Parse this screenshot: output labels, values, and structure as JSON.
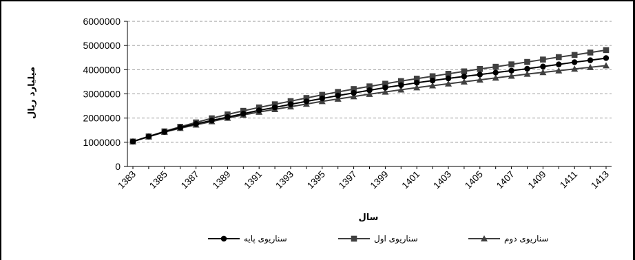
{
  "chart_data": {
    "type": "line",
    "title": "",
    "xlabel": "سال",
    "ylabel": "میلیارد ریال",
    "ylim": [
      0,
      6000000
    ],
    "yticks": [
      0,
      1000000,
      2000000,
      3000000,
      4000000,
      5000000,
      6000000
    ],
    "ytick_labels": [
      "0",
      "1000000",
      "2000000",
      "3000000",
      "4000000",
      "5000000",
      "6000000"
    ],
    "xtick_labels": [
      "1383",
      "1385",
      "1387",
      "1389",
      "1391",
      "1393",
      "1395",
      "1397",
      "1399",
      "1401",
      "1403",
      "1405",
      "1407",
      "1409",
      "1411",
      "1413"
    ],
    "x": [
      1383,
      1384,
      1385,
      1386,
      1387,
      1388,
      1389,
      1390,
      1391,
      1392,
      1393,
      1394,
      1395,
      1396,
      1397,
      1398,
      1399,
      1400,
      1401,
      1402,
      1403,
      1404,
      1405,
      1406,
      1407,
      1408,
      1409,
      1410,
      1411,
      1412,
      1413
    ],
    "grid": "horizontal dashed",
    "legend_position": "bottom",
    "series": [
      {
        "name": "سناریوی پایه",
        "marker": "circle",
        "color": "#000000",
        "values": [
          1030000,
          1240000,
          1430000,
          1610000,
          1760000,
          1900000,
          2040000,
          2180000,
          2320000,
          2440000,
          2570000,
          2690000,
          2810000,
          2930000,
          3040000,
          3150000,
          3260000,
          3360000,
          3460000,
          3550000,
          3640000,
          3720000,
          3800000,
          3880000,
          3960000,
          4040000,
          4130000,
          4220000,
          4310000,
          4390000,
          4480000
        ]
      },
      {
        "name": "سناریوی اول",
        "marker": "square",
        "color": "#404040",
        "values": [
          1030000,
          1240000,
          1450000,
          1640000,
          1820000,
          1990000,
          2150000,
          2300000,
          2440000,
          2570000,
          2700000,
          2830000,
          2960000,
          3080000,
          3200000,
          3310000,
          3420000,
          3530000,
          3630000,
          3730000,
          3830000,
          3930000,
          4030000,
          4120000,
          4220000,
          4320000,
          4420000,
          4520000,
          4610000,
          4710000,
          4810000
        ]
      },
      {
        "name": "سناریوی دوم",
        "marker": "triangle",
        "color": "#404040",
        "values": [
          1030000,
          1230000,
          1420000,
          1580000,
          1720000,
          1860000,
          2000000,
          2130000,
          2250000,
          2360000,
          2470000,
          2580000,
          2690000,
          2790000,
          2890000,
          2990000,
          3080000,
          3170000,
          3260000,
          3340000,
          3420000,
          3500000,
          3580000,
          3660000,
          3740000,
          3820000,
          3890000,
          3960000,
          4030000,
          4100000,
          4170000
        ]
      }
    ]
  }
}
